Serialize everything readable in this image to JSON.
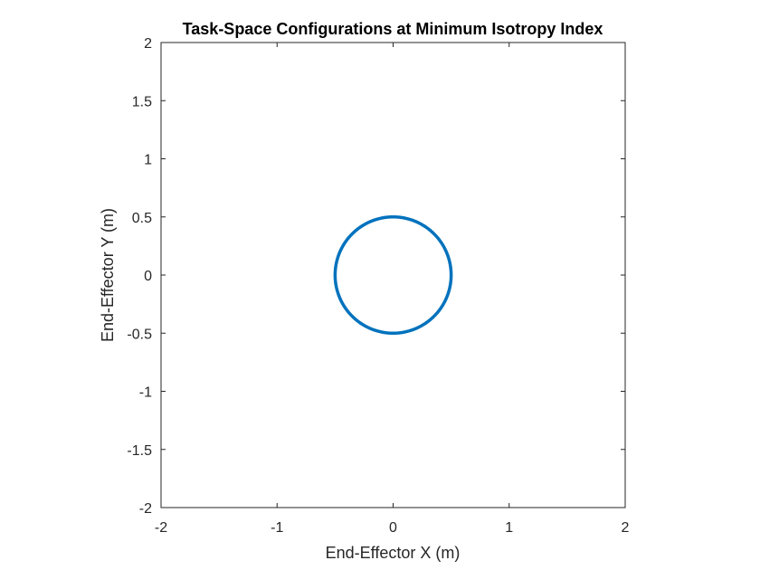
{
  "chart_data": {
    "type": "line",
    "title": "Task-Space Configurations at Minimum Isotropy Index",
    "xlabel": "End-Effector X (m)",
    "ylabel": "End-Effector Y (m)",
    "xlim": [
      -2,
      2
    ],
    "ylim": [
      -2,
      2
    ],
    "xticks": [
      -2,
      -1,
      0,
      1,
      2
    ],
    "xtick_labels": [
      "-2",
      "-1",
      "0",
      "1",
      "2"
    ],
    "yticks": [
      -2,
      -1.5,
      -1,
      -0.5,
      0,
      0.5,
      1,
      1.5,
      2
    ],
    "ytick_labels": [
      "-2",
      "-1.5",
      "-1",
      "-0.5",
      "0",
      "0.5",
      "1",
      "1.5",
      "2"
    ],
    "grid": false,
    "series": [
      {
        "name": "circle",
        "shape": "circle",
        "center": [
          0,
          0
        ],
        "radius": 0.5,
        "color": "#0072BD"
      }
    ]
  }
}
